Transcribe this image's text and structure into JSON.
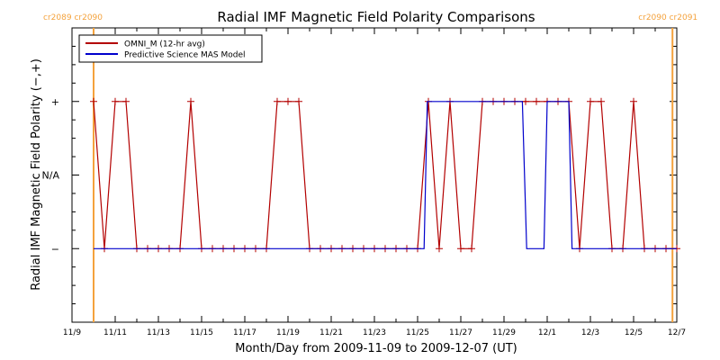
{
  "chart_data": {
    "type": "line",
    "title": "Radial IMF Magnetic Field Polarity Comparisons",
    "xlabel": "Month/Day from 2009-11-09 to 2009-12-07 (UT)",
    "ylabel": "Radial IMF Magnetic Field Polarity (−,+)",
    "x_range_days": [
      0,
      28
    ],
    "ylim": [
      -2,
      2
    ],
    "x_ticks": [
      {
        "day": 0,
        "label": "11/9"
      },
      {
        "day": 2,
        "label": "11/11"
      },
      {
        "day": 4,
        "label": "11/13"
      },
      {
        "day": 6,
        "label": "11/15"
      },
      {
        "day": 8,
        "label": "11/17"
      },
      {
        "day": 10,
        "label": "11/19"
      },
      {
        "day": 12,
        "label": "11/21"
      },
      {
        "day": 14,
        "label": "11/23"
      },
      {
        "day": 16,
        "label": "11/25"
      },
      {
        "day": 18,
        "label": "11/27"
      },
      {
        "day": 20,
        "label": "11/29"
      },
      {
        "day": 22,
        "label": "12/1"
      },
      {
        "day": 24,
        "label": "12/3"
      },
      {
        "day": 26,
        "label": "12/5"
      },
      {
        "day": 28,
        "label": "12/7"
      }
    ],
    "y_ticks": [
      {
        "value": 1,
        "label": "+"
      },
      {
        "value": 0,
        "label": "N/A"
      },
      {
        "value": -1,
        "label": "−"
      }
    ],
    "rotation_markers": [
      {
        "day": 1.0,
        "label": "cr2089 cr2090",
        "label_side": "left"
      },
      {
        "day": 27.8,
        "label": "cr2090 cr2091",
        "label_side": "right"
      }
    ],
    "legend": {
      "position": "top-left"
    },
    "colors": {
      "omni": "#b30000",
      "mas": "#0000cc",
      "rotation": "#f4a23c",
      "axis": "#000000"
    },
    "series": [
      {
        "name": "OMNI_M (12-hr avg)",
        "points": [
          [
            1.0,
            1
          ],
          [
            1.5,
            -1
          ],
          [
            2.0,
            1
          ],
          [
            2.5,
            1
          ],
          [
            3.0,
            -1
          ],
          [
            3.5,
            -1
          ],
          [
            4.0,
            -1
          ],
          [
            4.5,
            -1
          ],
          [
            5.0,
            -1
          ],
          [
            5.5,
            1
          ],
          [
            6.0,
            -1
          ],
          [
            6.5,
            -1
          ],
          [
            7.0,
            -1
          ],
          [
            7.5,
            -1
          ],
          [
            8.0,
            -1
          ],
          [
            8.5,
            -1
          ],
          [
            9.0,
            -1
          ],
          [
            9.5,
            1
          ],
          [
            10.0,
            1
          ],
          [
            10.5,
            1
          ],
          [
            11.0,
            -1
          ],
          [
            11.5,
            -1
          ],
          [
            12.0,
            -1
          ],
          [
            12.5,
            -1
          ],
          [
            13.0,
            -1
          ],
          [
            13.5,
            -1
          ],
          [
            14.0,
            -1
          ],
          [
            14.5,
            -1
          ],
          [
            15.0,
            -1
          ],
          [
            15.5,
            -1
          ],
          [
            16.0,
            -1
          ],
          [
            16.5,
            1
          ],
          [
            17.0,
            -1
          ],
          [
            17.5,
            1
          ],
          [
            18.0,
            -1
          ],
          [
            18.5,
            -1
          ],
          [
            19.0,
            1
          ],
          [
            19.5,
            1
          ],
          [
            20.0,
            1
          ],
          [
            20.5,
            1
          ],
          [
            21.0,
            1
          ],
          [
            21.5,
            1
          ],
          [
            22.0,
            1
          ],
          [
            22.5,
            1
          ],
          [
            23.0,
            1
          ],
          [
            23.5,
            -1
          ],
          [
            24.0,
            1
          ],
          [
            24.5,
            1
          ],
          [
            25.0,
            -1
          ],
          [
            25.5,
            -1
          ],
          [
            26.0,
            1
          ],
          [
            26.5,
            -1
          ],
          [
            27.0,
            -1
          ],
          [
            27.5,
            -1
          ],
          [
            28.0,
            -1
          ]
        ],
        "markers": true
      },
      {
        "name": "Predictive Science MAS Model",
        "points": [
          [
            1.0,
            -1
          ],
          [
            16.3,
            -1
          ],
          [
            16.45,
            1
          ],
          [
            20.85,
            1
          ],
          [
            21.05,
            -1
          ],
          [
            21.85,
            -1
          ],
          [
            22.0,
            1
          ],
          [
            23.0,
            1
          ],
          [
            23.15,
            -1
          ],
          [
            28.0,
            -1
          ]
        ],
        "markers": false
      }
    ]
  }
}
